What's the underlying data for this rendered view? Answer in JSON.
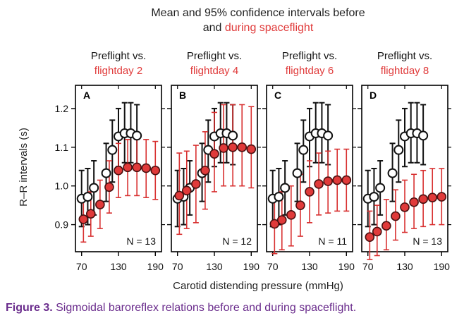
{
  "figure": {
    "title_line1": "Mean and 95% confidence intervals before",
    "title_line2_prefix": "and ",
    "title_line2_red": "during spaceflight",
    "ylabel": "R–R intervals (s)",
    "xlabel": "Carotid distending pressure (mmHg)",
    "caption_label": "Figure 3.",
    "caption_text": " Sigmoidal baroreflex relations before and during spaceflight.",
    "colors": {
      "preflight": "#ffffff",
      "flight": "#e03a3a",
      "flight_err": "#d83030",
      "red_text": "#e03a3a",
      "caption": "#6a2c8c",
      "axis": "#000000"
    }
  },
  "chart_data": [
    {
      "type": "scatter",
      "panel_letter": "A",
      "header_line1": "Preflight vs.",
      "header_line2": "flightday 2",
      "n_label": "N = 13",
      "x_ticks": [
        "70",
        "130",
        "190"
      ],
      "y_ticks": [
        "1.2",
        "1.1",
        "1.0",
        "0.9"
      ],
      "xlim": [
        60,
        200
      ],
      "ylim": [
        0.83,
        1.26
      ],
      "series": [
        {
          "role": "preflight",
          "x": [
            70,
            80,
            90,
            110,
            120,
            130,
            140,
            150,
            160
          ],
          "y": [
            0.967,
            0.972,
            0.995,
            1.033,
            1.093,
            1.128,
            1.136,
            1.136,
            1.13
          ],
          "lo": [
            0.895,
            0.9,
            0.925,
            0.96,
            1.01,
            1.05,
            1.06,
            1.06,
            1.055
          ],
          "hi": [
            1.04,
            1.045,
            1.065,
            1.11,
            1.17,
            1.2,
            1.215,
            1.215,
            1.21
          ]
        },
        {
          "role": "flight",
          "x": [
            73,
            85,
            100,
            115,
            130,
            145,
            160,
            175,
            190
          ],
          "y": [
            0.914,
            0.928,
            0.952,
            0.997,
            1.04,
            1.048,
            1.048,
            1.046,
            1.04
          ],
          "lo": [
            0.855,
            0.87,
            0.89,
            0.93,
            0.97,
            0.975,
            0.975,
            0.97,
            0.965
          ],
          "hi": [
            0.97,
            0.985,
            1.015,
            1.065,
            1.11,
            1.12,
            1.12,
            1.12,
            1.115
          ]
        }
      ]
    },
    {
      "type": "scatter",
      "panel_letter": "B",
      "header_line1": "Preflight vs.",
      "header_line2": "flightday 4",
      "n_label": "N = 12",
      "x_ticks": [
        "70",
        "130",
        "190"
      ],
      "y_ticks": [],
      "xlim": [
        60,
        200
      ],
      "ylim": [
        0.83,
        1.26
      ],
      "series": [
        {
          "role": "preflight",
          "x": [
            70,
            80,
            90,
            110,
            120,
            130,
            140,
            150,
            160
          ],
          "y": [
            0.967,
            0.972,
            0.995,
            1.033,
            1.093,
            1.128,
            1.136,
            1.136,
            1.13
          ],
          "lo": [
            0.895,
            0.9,
            0.925,
            0.96,
            1.01,
            1.05,
            1.06,
            1.06,
            1.055
          ],
          "hi": [
            1.04,
            1.045,
            1.065,
            1.11,
            1.17,
            1.2,
            1.215,
            1.215,
            1.21
          ]
        },
        {
          "role": "flight",
          "x": [
            73,
            85,
            100,
            115,
            130,
            145,
            160,
            175,
            190
          ],
          "y": [
            0.975,
            0.988,
            1.005,
            1.04,
            1.083,
            1.098,
            1.1,
            1.1,
            1.095
          ],
          "lo": [
            0.875,
            0.89,
            0.905,
            0.94,
            0.985,
            1.0,
            1.0,
            1.0,
            0.995
          ],
          "hi": [
            1.085,
            1.09,
            1.105,
            1.14,
            1.19,
            1.21,
            1.21,
            1.21,
            1.205
          ]
        }
      ]
    },
    {
      "type": "scatter",
      "panel_letter": "C",
      "header_line1": "Preflight vs.",
      "header_line2": "flightday 6",
      "n_label": "N = 11",
      "x_ticks": [
        "70",
        "130",
        "190"
      ],
      "y_ticks": [],
      "xlim": [
        60,
        200
      ],
      "ylim": [
        0.83,
        1.26
      ],
      "series": [
        {
          "role": "preflight",
          "x": [
            70,
            80,
            90,
            110,
            120,
            130,
            140,
            150,
            160
          ],
          "y": [
            0.967,
            0.972,
            0.995,
            1.033,
            1.093,
            1.128,
            1.136,
            1.136,
            1.13
          ],
          "lo": [
            0.895,
            0.9,
            0.925,
            0.96,
            1.01,
            1.05,
            1.06,
            1.06,
            1.055
          ],
          "hi": [
            1.04,
            1.045,
            1.065,
            1.11,
            1.17,
            1.2,
            1.215,
            1.215,
            1.21
          ]
        },
        {
          "role": "flight",
          "x": [
            73,
            85,
            100,
            115,
            130,
            145,
            160,
            175,
            190
          ],
          "y": [
            0.902,
            0.912,
            0.925,
            0.95,
            0.985,
            1.005,
            1.012,
            1.015,
            1.015
          ],
          "lo": [
            0.825,
            0.835,
            0.845,
            0.87,
            0.905,
            0.925,
            0.93,
            0.935,
            0.935
          ],
          "hi": [
            0.97,
            0.985,
            1.0,
            1.03,
            1.065,
            1.085,
            1.09,
            1.095,
            1.095
          ]
        }
      ]
    },
    {
      "type": "scatter",
      "panel_letter": "D",
      "header_line1": "Preflight vs.",
      "header_line2": "flightday 8",
      "n_label": "N = 13",
      "x_ticks": [
        "70",
        "130",
        "190"
      ],
      "y_ticks": [],
      "xlim": [
        60,
        200
      ],
      "ylim": [
        0.83,
        1.26
      ],
      "series": [
        {
          "role": "preflight",
          "x": [
            70,
            80,
            90,
            110,
            120,
            130,
            140,
            150,
            160
          ],
          "y": [
            0.967,
            0.972,
            0.995,
            1.033,
            1.093,
            1.128,
            1.136,
            1.136,
            1.13
          ],
          "lo": [
            0.895,
            0.9,
            0.925,
            0.96,
            1.01,
            1.05,
            1.06,
            1.06,
            1.055
          ],
          "hi": [
            1.04,
            1.045,
            1.065,
            1.11,
            1.17,
            1.2,
            1.215,
            1.215,
            1.21
          ]
        },
        {
          "role": "flight",
          "x": [
            73,
            85,
            100,
            115,
            130,
            145,
            160,
            175,
            190
          ],
          "y": [
            0.868,
            0.882,
            0.897,
            0.922,
            0.945,
            0.958,
            0.966,
            0.97,
            0.972
          ],
          "lo": [
            0.81,
            0.82,
            0.835,
            0.86,
            0.88,
            0.89,
            0.895,
            0.9,
            0.9
          ],
          "hi": [
            0.935,
            0.95,
            0.965,
            0.99,
            1.015,
            1.03,
            1.04,
            1.045,
            1.045
          ]
        }
      ]
    }
  ]
}
